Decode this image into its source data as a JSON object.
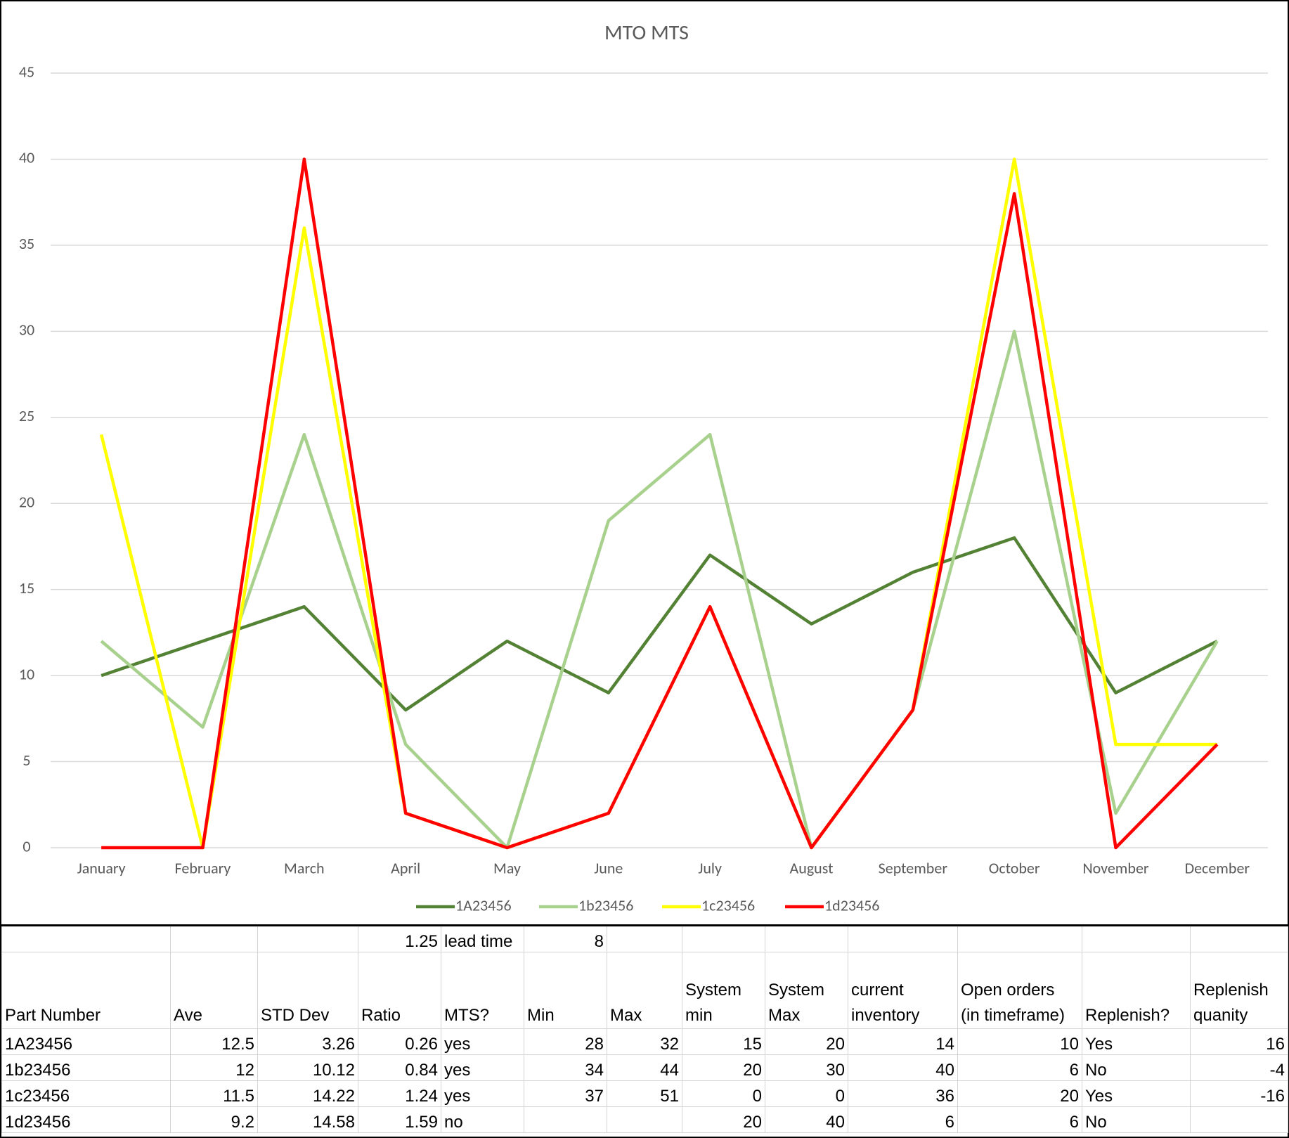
{
  "chart_data": {
    "type": "line",
    "title": "MTO MTS",
    "categories": [
      "January",
      "February",
      "March",
      "April",
      "May",
      "June",
      "July",
      "August",
      "September",
      "October",
      "November",
      "December"
    ],
    "series": [
      {
        "name": "1A23456",
        "color": "#548235",
        "values": [
          10,
          12,
          14,
          8,
          12,
          9,
          17,
          13,
          16,
          18,
          9,
          12
        ]
      },
      {
        "name": "1b23456",
        "color": "#a9d18e",
        "values": [
          12,
          7,
          24,
          6,
          0,
          19,
          24,
          0,
          8,
          30,
          2,
          12
        ]
      },
      {
        "name": "1c23456",
        "color": "#ffff00",
        "values": [
          24,
          0,
          36,
          2,
          0,
          2,
          14,
          0,
          8,
          40,
          6,
          6
        ]
      },
      {
        "name": "1d23456",
        "color": "#ff0000",
        "values": [
          0,
          0,
          40,
          2,
          0,
          2,
          14,
          0,
          8,
          38,
          0,
          6
        ]
      }
    ],
    "ylim": [
      0,
      45
    ],
    "yticks": [
      0,
      5,
      10,
      15,
      20,
      25,
      30,
      35,
      40,
      45
    ],
    "grid": true,
    "legend": "bottom"
  },
  "table": {
    "top_row": [
      null,
      null,
      null,
      1.25,
      "lead time",
      8,
      null,
      null,
      null,
      null,
      null,
      null,
      null
    ],
    "header": [
      [
        "Part Number"
      ],
      [
        "Ave"
      ],
      [
        "STD Dev"
      ],
      [
        "Ratio"
      ],
      [
        "MTS?"
      ],
      [
        "Min"
      ],
      [
        "Max"
      ],
      [
        "System",
        "min"
      ],
      [
        "System",
        "Max"
      ],
      [
        "current",
        "inventory"
      ],
      [
        "Open orders",
        "(in timeframe)"
      ],
      [
        "Replenish?"
      ],
      [
        "Replenish",
        "quanity"
      ]
    ],
    "rows": [
      [
        "1A23456",
        12.5,
        3.26,
        0.26,
        "yes",
        28,
        32,
        15,
        20,
        14,
        10,
        "Yes",
        16
      ],
      [
        "1b23456",
        12,
        10.12,
        0.84,
        "yes",
        34,
        44,
        20,
        30,
        40,
        6,
        "No",
        -4
      ],
      [
        "1c23456",
        11.5,
        14.22,
        1.24,
        "yes",
        37,
        51,
        0,
        0,
        36,
        20,
        "Yes",
        -16
      ],
      [
        "1d23456",
        9.2,
        14.58,
        1.59,
        "no",
        null,
        null,
        20,
        40,
        6,
        6,
        "No",
        null
      ]
    ]
  }
}
